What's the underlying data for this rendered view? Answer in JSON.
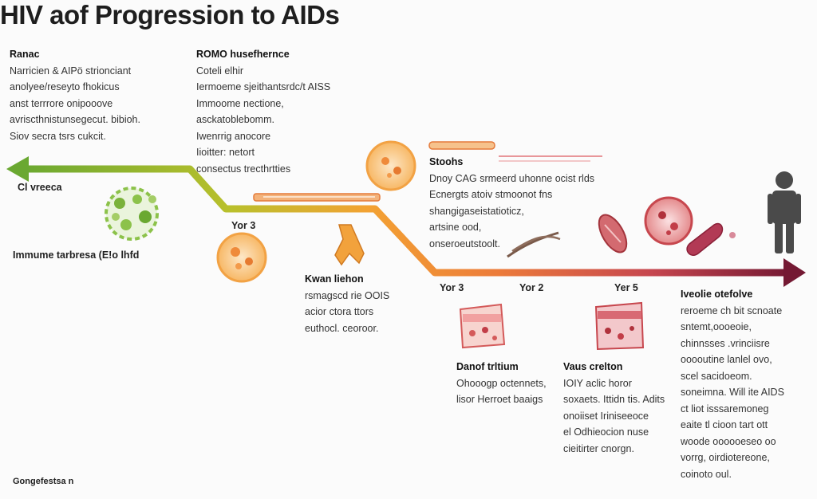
{
  "title": "HIV aof Progression to AIDs",
  "colors": {
    "green": "#7ab23a",
    "yellow": "#c9c12a",
    "orange": "#f0902a",
    "red": "#c7474e",
    "maroon": "#7a1a32",
    "figure": "#4a4a4a"
  },
  "blocks": {
    "left": {
      "heading": "Ranac",
      "lines": [
        "Narricien & AIPö strionciant",
        "anolyee/reseyto fhokicus",
        "anst terrrore onipooove",
        "avriscthnistunsegecut. bibioh.",
        "Siov secra tsrs cukcit."
      ]
    },
    "center": {
      "heading": "ROMO husefhernce",
      "lines": [
        "Coteli elhir",
        "Iermoeme sjeithantsrdc/t AISS",
        "Immoome nectione,",
        "asckatoblebomm.",
        "Iwenrrig anocore",
        "Iioitter: netort",
        "consectus trecthrtties"
      ]
    },
    "right_top": {
      "heading": "Stoohs",
      "lines": [
        "Dnoy CAG srmeerd uhonne ocist rlds",
        "Ecnergts atoiv stmoonot fns",
        "shangigaseistatioticz,",
        "artsine ood,",
        "onseroeutstoolt."
      ]
    },
    "year3a": {
      "heading": "Kwan liehon",
      "lines": [
        "rsmagscd rie OOIS",
        "acior ctora ttors",
        "euthocl. ceoroor."
      ]
    },
    "under1": {
      "heading": "Danof trltium",
      "lines": [
        "Ohooogp octennets,",
        "lisor Herroet baaigs"
      ]
    },
    "under2": {
      "heading": "Vaus crelton",
      "lines": [
        "IOIY aclic horor",
        "soxaets. Ittidn tis. Adits",
        "onoiiset Iriniseeoce",
        "el Odhieocion nuse",
        "cieitirter cnorgn."
      ]
    },
    "right": {
      "heading": "Iveolie otefolve",
      "lines": [
        "reroeme ch bit scnoate",
        "sntemt,oooeoie,",
        "chinnsses .vrinciisre",
        "ooooutine lanlel ovo,",
        "scel sacidoeom.",
        "soneimna. Will ite AIDS",
        "ct liot isssaremoneg",
        "eaite tl cioon tart ott",
        "woode oooooeseo oo",
        "vorrg, oirdiotereone,",
        "coinoto oul."
      ]
    }
  },
  "labels": {
    "left_arrow": "Cl vreeca",
    "immune": "Immume tarbresa (E!o lhfd",
    "year_3": "Yor 3",
    "year_a": "Yor 3",
    "year_b": "Yor 2",
    "year_c": "Yer 5",
    "footer": "Gongefestsa n"
  }
}
